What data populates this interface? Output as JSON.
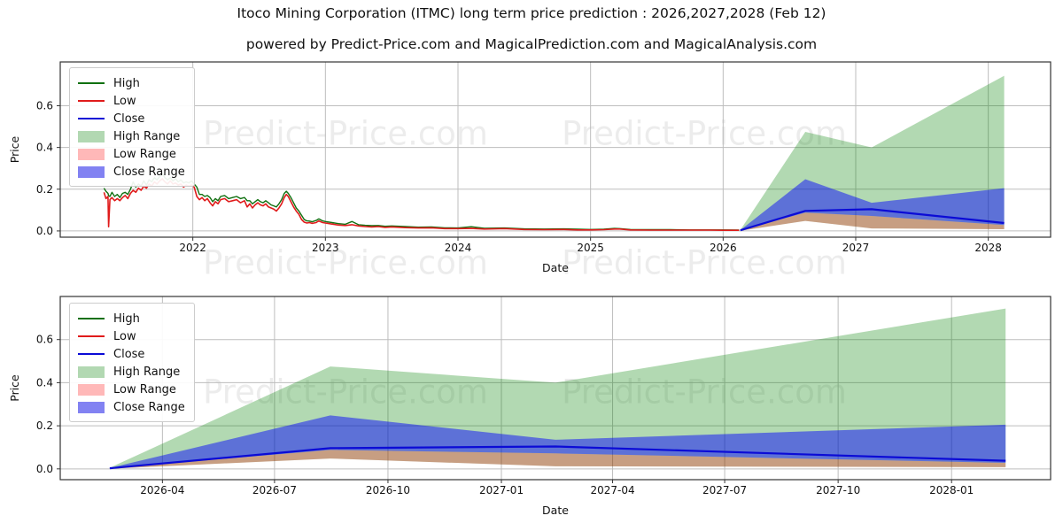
{
  "title": "Itoco Mining Corporation (ITMC) long term price prediction : 2026,2027,2028 (Feb 12)",
  "subtitle": "powered by Predict-Price.com and MagicalPrediction.com and MagicalAnalysis.com",
  "watermark": {
    "text": "Predict-Price.com"
  },
  "colors": {
    "high_line": "#107010",
    "low_line": "#e01b1b",
    "close_line": "#0b0bd6",
    "high_range_fill": "rgba(0,128,0,0.30)",
    "low_range_fill": "rgba(255,0,0,0.27)",
    "close_range_fill": "rgba(0,0,255,0.48)",
    "legend_high_patch": "#b2d8b2",
    "legend_low_patch": "#ffb8b8",
    "legend_close_patch": "#8282f2",
    "grid": "#bdbdbd",
    "frame": "#333333",
    "text": "#111111"
  },
  "legend": [
    {
      "label": "High",
      "type": "line",
      "color": "#107010"
    },
    {
      "label": "Low",
      "type": "line",
      "color": "#e01b1b"
    },
    {
      "label": "Close",
      "type": "line",
      "color": "#0b0bd6"
    },
    {
      "label": "High Range",
      "type": "patch",
      "color": "#b2d8b2"
    },
    {
      "label": "Low Range",
      "type": "patch",
      "color": "#ffb8b8"
    },
    {
      "label": "Close Range",
      "type": "patch",
      "color": "#8282f2"
    }
  ],
  "chart_data": [
    {
      "type": "line",
      "name": "price-history-and-prediction",
      "xlabel": "Date",
      "ylabel": "Price",
      "x_tick_labels": [
        "2022",
        "2023",
        "2024",
        "2025",
        "2026",
        "2027",
        "2028"
      ],
      "x_tick_years": [
        2022,
        2023,
        2024,
        2025,
        2026,
        2027,
        2028
      ],
      "y_tick_labels": [
        "0.0",
        "0.2",
        "0.4",
        "0.6"
      ],
      "y_tick_values": [
        0.0,
        0.2,
        0.4,
        0.6
      ],
      "x_range_years": [
        2021.0,
        2028.47
      ],
      "y_range": [
        -0.03,
        0.81
      ],
      "grid": true,
      "legend_position": "upper-left",
      "show_history": true,
      "show_prediction": true
    },
    {
      "type": "line",
      "name": "prediction-zoom",
      "xlabel": "Date",
      "ylabel": "Price",
      "x_tick_labels": [
        "2026-04",
        "2026-07",
        "2026-10",
        "2027-01",
        "2027-04",
        "2027-07",
        "2027-10",
        "2028-01"
      ],
      "x_tick_years": [
        2026.247,
        2026.496,
        2026.748,
        2027.0,
        2027.247,
        2027.496,
        2027.748,
        2028.0
      ],
      "y_tick_labels": [
        "0.0",
        "0.2",
        "0.4",
        "0.6"
      ],
      "y_tick_values": [
        0.0,
        0.2,
        0.4,
        0.6
      ],
      "x_range_years": [
        2026.02,
        2028.22
      ],
      "y_range": [
        -0.05,
        0.8
      ],
      "grid": true,
      "legend_position": "upper-left",
      "show_history": false,
      "show_prediction": true
    }
  ],
  "prediction": {
    "years": [
      2026.13,
      2026.62,
      2027.12,
      2028.12
    ],
    "high_range_top": [
      0.005,
      0.475,
      0.4,
      0.744
    ],
    "close_range_top": [
      0.004,
      0.248,
      0.135,
      0.205
    ],
    "close": [
      0.003,
      0.096,
      0.104,
      0.038
    ],
    "close_range_bottom": [
      0.002,
      0.088,
      0.072,
      0.028
    ],
    "low_range_bottom": [
      0.001,
      0.048,
      0.012,
      0.008
    ]
  },
  "history": {
    "columns": [
      "year",
      "low",
      "high"
    ],
    "anomaly_spike": {
      "year": 2021.71,
      "from": 0.26,
      "to": 0.345
    },
    "points": [
      [
        2021.33,
        0.185,
        0.205
      ],
      [
        2021.345,
        0.155,
        0.19
      ],
      [
        2021.36,
        0.165,
        0.18
      ],
      [
        2021.365,
        0.02,
        0.17
      ],
      [
        2021.375,
        0.15,
        0.165
      ],
      [
        2021.39,
        0.16,
        0.185
      ],
      [
        2021.41,
        0.145,
        0.165
      ],
      [
        2021.43,
        0.155,
        0.175
      ],
      [
        2021.45,
        0.145,
        0.16
      ],
      [
        2021.47,
        0.16,
        0.18
      ],
      [
        2021.49,
        0.17,
        0.185
      ],
      [
        2021.51,
        0.155,
        0.175
      ],
      [
        2021.53,
        0.18,
        0.2
      ],
      [
        2021.55,
        0.195,
        0.235
      ],
      [
        2021.57,
        0.185,
        0.21
      ],
      [
        2021.59,
        0.205,
        0.225
      ],
      [
        2021.61,
        0.195,
        0.215
      ],
      [
        2021.63,
        0.215,
        0.24
      ],
      [
        2021.65,
        0.205,
        0.22
      ],
      [
        2021.67,
        0.225,
        0.245
      ],
      [
        2021.69,
        0.215,
        0.235
      ],
      [
        2021.71,
        0.235,
        0.255
      ],
      [
        2021.73,
        0.225,
        0.245
      ],
      [
        2021.75,
        0.24,
        0.26
      ],
      [
        2021.77,
        0.25,
        0.275
      ],
      [
        2021.79,
        0.235,
        0.255
      ],
      [
        2021.81,
        0.225,
        0.245
      ],
      [
        2021.83,
        0.24,
        0.255
      ],
      [
        2021.85,
        0.225,
        0.24
      ],
      [
        2021.87,
        0.23,
        0.25
      ],
      [
        2021.89,
        0.22,
        0.235
      ],
      [
        2021.91,
        0.225,
        0.245
      ],
      [
        2021.93,
        0.21,
        0.23
      ],
      [
        2021.95,
        0.22,
        0.235
      ],
      [
        2021.97,
        0.215,
        0.23
      ],
      [
        2021.99,
        0.22,
        0.24
      ],
      [
        2022.01,
        0.21,
        0.225
      ],
      [
        2022.03,
        0.165,
        0.21
      ],
      [
        2022.05,
        0.15,
        0.175
      ],
      [
        2022.07,
        0.16,
        0.175
      ],
      [
        2022.09,
        0.145,
        0.165
      ],
      [
        2022.11,
        0.155,
        0.17
      ],
      [
        2022.13,
        0.135,
        0.16
      ],
      [
        2022.15,
        0.12,
        0.14
      ],
      [
        2022.17,
        0.14,
        0.155
      ],
      [
        2022.19,
        0.13,
        0.145
      ],
      [
        2022.21,
        0.15,
        0.165
      ],
      [
        2022.24,
        0.155,
        0.17
      ],
      [
        2022.27,
        0.14,
        0.155
      ],
      [
        2022.3,
        0.145,
        0.16
      ],
      [
        2022.33,
        0.15,
        0.165
      ],
      [
        2022.36,
        0.135,
        0.155
      ],
      [
        2022.39,
        0.145,
        0.16
      ],
      [
        2022.41,
        0.115,
        0.145
      ],
      [
        2022.43,
        0.13,
        0.145
      ],
      [
        2022.45,
        0.11,
        0.13
      ],
      [
        2022.47,
        0.125,
        0.14
      ],
      [
        2022.49,
        0.135,
        0.15
      ],
      [
        2022.51,
        0.125,
        0.14
      ],
      [
        2022.53,
        0.12,
        0.135
      ],
      [
        2022.55,
        0.13,
        0.145
      ],
      [
        2022.57,
        0.115,
        0.135
      ],
      [
        2022.59,
        0.11,
        0.125
      ],
      [
        2022.61,
        0.105,
        0.12
      ],
      [
        2022.63,
        0.095,
        0.115
      ],
      [
        2022.65,
        0.11,
        0.13
      ],
      [
        2022.67,
        0.13,
        0.15
      ],
      [
        2022.69,
        0.16,
        0.18
      ],
      [
        2022.705,
        0.175,
        0.19
      ],
      [
        2022.72,
        0.165,
        0.18
      ],
      [
        2022.74,
        0.14,
        0.16
      ],
      [
        2022.76,
        0.115,
        0.135
      ],
      [
        2022.78,
        0.095,
        0.11
      ],
      [
        2022.8,
        0.08,
        0.095
      ],
      [
        2022.82,
        0.055,
        0.075
      ],
      [
        2022.84,
        0.042,
        0.055
      ],
      [
        2022.86,
        0.038,
        0.048
      ],
      [
        2022.88,
        0.04,
        0.047
      ],
      [
        2022.9,
        0.036,
        0.044
      ],
      [
        2022.93,
        0.04,
        0.05
      ],
      [
        2022.95,
        0.048,
        0.058
      ],
      [
        2022.98,
        0.04,
        0.048
      ],
      [
        2023.0,
        0.038,
        0.045
      ],
      [
        2023.05,
        0.033,
        0.04
      ],
      [
        2023.1,
        0.028,
        0.035
      ],
      [
        2023.15,
        0.026,
        0.032
      ],
      [
        2023.2,
        0.03,
        0.045
      ],
      [
        2023.25,
        0.024,
        0.03
      ],
      [
        2023.3,
        0.021,
        0.027
      ],
      [
        2023.35,
        0.019,
        0.025
      ],
      [
        2023.4,
        0.021,
        0.026
      ],
      [
        2023.45,
        0.017,
        0.022
      ],
      [
        2023.5,
        0.019,
        0.024
      ],
      [
        2023.6,
        0.016,
        0.021
      ],
      [
        2023.7,
        0.014,
        0.018
      ],
      [
        2023.8,
        0.015,
        0.019
      ],
      [
        2023.9,
        0.011,
        0.015
      ],
      [
        2024.0,
        0.011,
        0.014
      ],
      [
        2024.1,
        0.012,
        0.02
      ],
      [
        2024.2,
        0.009,
        0.013
      ],
      [
        2024.35,
        0.011,
        0.014
      ],
      [
        2024.5,
        0.007,
        0.01
      ],
      [
        2024.65,
        0.006,
        0.009
      ],
      [
        2024.8,
        0.007,
        0.01
      ],
      [
        2024.9,
        0.005,
        0.008
      ],
      [
        2025.0,
        0.005,
        0.007
      ],
      [
        2025.1,
        0.006,
        0.008
      ],
      [
        2025.18,
        0.009,
        0.012
      ],
      [
        2025.22,
        0.009,
        0.011
      ],
      [
        2025.3,
        0.005,
        0.007
      ],
      [
        2025.45,
        0.004,
        0.006
      ],
      [
        2025.6,
        0.004,
        0.006
      ],
      [
        2025.75,
        0.004,
        0.005
      ],
      [
        2025.9,
        0.004,
        0.005
      ],
      [
        2026.0,
        0.003,
        0.005
      ],
      [
        2026.12,
        0.003,
        0.004
      ]
    ]
  }
}
